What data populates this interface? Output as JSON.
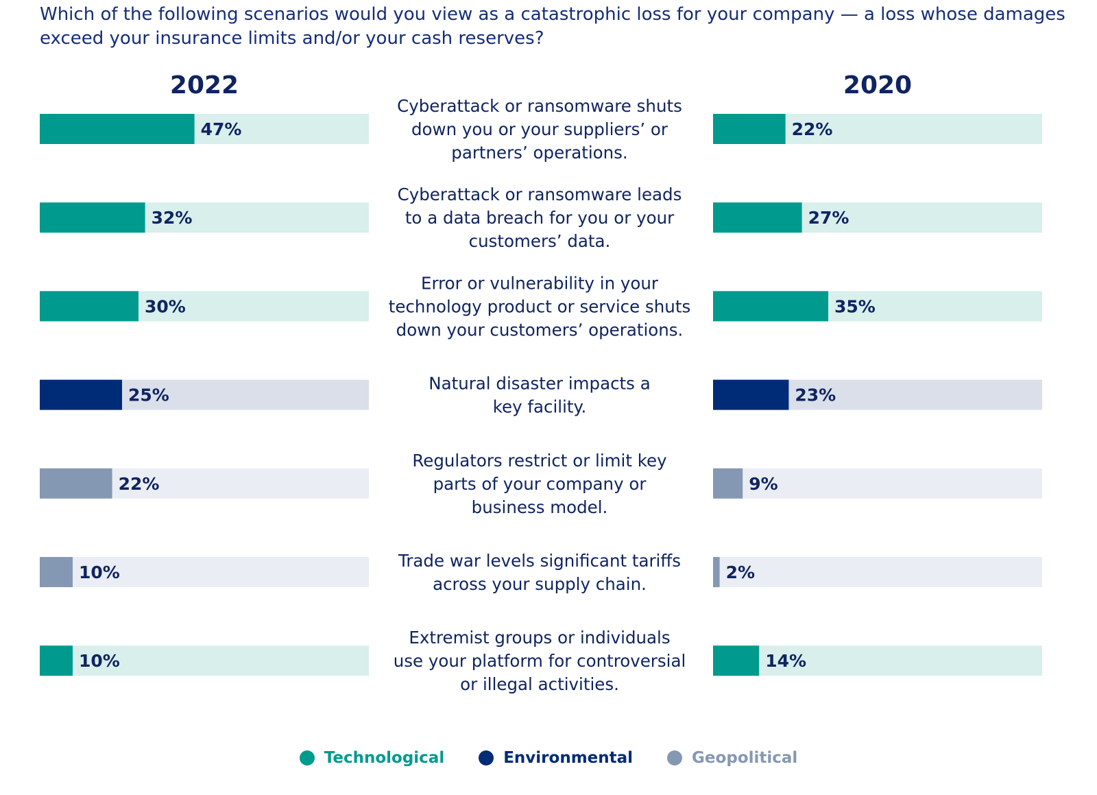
{
  "question": "Which of the following scenarios would you view as a catastrophic loss for your company — a loss whose damages exceed your insurance limits and/or your cash reserves?",
  "columns": {
    "left": "2022",
    "right": "2020"
  },
  "colors": {
    "technological": "#009a8f",
    "technological_track": "#d8efec",
    "environmental": "#002b77",
    "environmental_track": "#dadfea",
    "geopolitical": "#8598b3",
    "geopolitical_track": "#eaedf3",
    "text_dark": "#0f2461"
  },
  "legend": [
    {
      "key": "technological",
      "label": "Technological",
      "color": "#009a8f"
    },
    {
      "key": "environmental",
      "label": "Environmental",
      "color": "#002b77"
    },
    {
      "key": "geopolitical",
      "label": "Geopolitical",
      "color": "#8598b3"
    }
  ],
  "chart_data": {
    "type": "bar",
    "orientation": "horizontal",
    "value_unit": "%",
    "xlim": [
      0,
      100
    ],
    "categories": [
      {
        "label": [
          "Cyberattack or ransomware shuts",
          "down you or your suppliers’ or",
          "partners’ operations."
        ],
        "group": "technological"
      },
      {
        "label": [
          "Cyberattack or ransomware leads",
          "to a data breach for you or your",
          "customers’ data."
        ],
        "group": "technological"
      },
      {
        "label": [
          "Error or vulnerability in your",
          "technology product or service shuts",
          "down your customers’ operations."
        ],
        "group": "technological"
      },
      {
        "label": [
          "Natural disaster impacts a",
          "key facility."
        ],
        "group": "environmental"
      },
      {
        "label": [
          "Regulators restrict or limit key",
          "parts of your company or",
          "business model."
        ],
        "group": "geopolitical"
      },
      {
        "label": [
          "Trade war levels significant tariffs",
          "across your supply chain."
        ],
        "group": "geopolitical"
      },
      {
        "label": [
          "Extremist groups or individuals",
          "use your platform for controversial",
          "or illegal activities."
        ],
        "group": "technological"
      }
    ],
    "series": [
      {
        "name": "2022",
        "values": [
          47,
          32,
          30,
          25,
          22,
          10,
          10
        ]
      },
      {
        "name": "2020",
        "values": [
          22,
          27,
          35,
          23,
          9,
          2,
          14
        ]
      }
    ]
  }
}
